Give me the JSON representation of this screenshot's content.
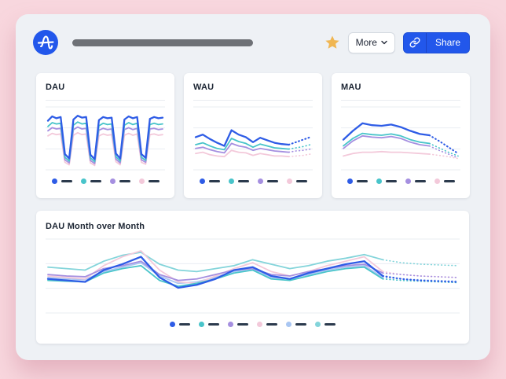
{
  "header": {
    "logo_name": "amplitude-logo",
    "more_label": "More",
    "share_label": "Share"
  },
  "colors": {
    "blue": "#2e5ce6",
    "teal": "#48c4ca",
    "purple": "#a58fe0",
    "pink": "#f3c9da",
    "lightblue": "#a9c6f2",
    "lightcyan": "#83d4da",
    "accent_blue": "#2257eb",
    "star": "#f0b652",
    "legend_dash": "#2b3a4d",
    "page_bg": "#f8d7de",
    "panel_bg": "#eef1f5",
    "gridline": "#e9edf2"
  },
  "chart_data": [
    {
      "type": "line",
      "title": "DAU",
      "ylim": [
        0,
        100
      ],
      "grid": true,
      "legend_position": "bottom",
      "series": [
        {
          "color": "blue",
          "values": [
            78,
            85,
            82,
            84,
            25,
            18,
            80,
            86,
            83,
            84,
            24,
            17,
            79,
            84,
            82,
            83,
            26,
            18,
            80,
            85,
            82,
            84,
            25,
            19,
            81,
            84,
            82,
            83
          ]
        },
        {
          "color": "teal",
          "values": [
            69,
            75,
            73,
            74,
            20,
            14,
            71,
            76,
            73,
            74,
            19,
            13,
            70,
            74,
            72,
            73,
            21,
            14,
            71,
            75,
            72,
            74,
            20,
            15,
            72,
            74,
            72,
            73
          ]
        },
        {
          "color": "purple",
          "values": [
            62,
            67,
            65,
            66,
            16,
            11,
            64,
            68,
            65,
            66,
            15,
            10,
            63,
            66,
            64,
            65,
            17,
            11,
            64,
            67,
            64,
            66,
            16,
            12,
            65,
            66,
            64,
            65
          ]
        },
        {
          "color": "pink",
          "values": [
            54,
            58,
            56,
            57,
            12,
            8,
            55,
            59,
            56,
            57,
            11,
            7,
            54,
            57,
            55,
            56,
            13,
            8,
            55,
            58,
            55,
            57,
            12,
            9,
            56,
            57,
            55,
            56
          ]
        }
      ]
    },
    {
      "type": "line",
      "title": "WAU",
      "ylim": [
        0,
        100
      ],
      "grid": true,
      "legend_position": "bottom",
      "series": [
        {
          "color": "blue",
          "values": [
            52,
            56,
            49,
            43,
            38,
            63,
            56,
            52,
            44,
            51,
            47,
            43,
            41,
            40
          ],
          "forecast": [
            44,
            48,
            52
          ]
        },
        {
          "color": "teal",
          "values": [
            40,
            43,
            38,
            34,
            32,
            50,
            45,
            42,
            36,
            41,
            38,
            35,
            34,
            33
          ],
          "forecast": [
            35,
            37,
            40
          ]
        },
        {
          "color": "purple",
          "values": [
            34,
            36,
            32,
            29,
            27,
            42,
            38,
            36,
            31,
            34,
            32,
            30,
            29,
            28
          ],
          "forecast": [
            30,
            31,
            33
          ]
        },
        {
          "color": "pink",
          "values": [
            26,
            28,
            24,
            22,
            21,
            31,
            28,
            27,
            23,
            26,
            24,
            22,
            22,
            21
          ],
          "forecast": [
            22,
            23,
            25
          ]
        }
      ]
    },
    {
      "type": "line",
      "title": "MAU",
      "ylim": [
        0,
        100
      ],
      "grid": true,
      "legend_position": "bottom",
      "series": [
        {
          "color": "blue",
          "values": [
            48,
            62,
            74,
            71,
            70,
            72,
            68,
            62,
            57,
            55
          ],
          "forecast": [
            46,
            36,
            26
          ]
        },
        {
          "color": "teal",
          "values": [
            38,
            50,
            58,
            56,
            55,
            57,
            54,
            48,
            44,
            42
          ],
          "forecast": [
            35,
            28,
            22
          ]
        },
        {
          "color": "purple",
          "values": [
            34,
            46,
            54,
            52,
            51,
            53,
            50,
            44,
            40,
            38
          ],
          "forecast": [
            31,
            25,
            19
          ]
        },
        {
          "color": "pink",
          "values": [
            22,
            26,
            28,
            28,
            29,
            28,
            28,
            27,
            26,
            25
          ],
          "forecast": [
            23,
            21,
            18
          ]
        }
      ]
    },
    {
      "type": "line",
      "title": "DAU Month over Month",
      "ylim": [
        0,
        100
      ],
      "grid": true,
      "legend_position": "bottom",
      "series": [
        {
          "color": "blue",
          "values": [
            46,
            44,
            42,
            58,
            66,
            76,
            48,
            34,
            38,
            46,
            58,
            62,
            50,
            46,
            54,
            60,
            66,
            70,
            50
          ],
          "forecast": [
            46,
            44,
            43,
            42
          ]
        },
        {
          "color": "teal",
          "values": [
            44,
            43,
            42,
            54,
            60,
            64,
            44,
            36,
            40,
            46,
            54,
            58,
            46,
            44,
            50,
            56,
            60,
            62,
            46
          ],
          "forecast": [
            44,
            43,
            42,
            41
          ]
        },
        {
          "color": "purple",
          "values": [
            52,
            50,
            49,
            60,
            64,
            70,
            52,
            44,
            46,
            52,
            58,
            60,
            52,
            50,
            56,
            60,
            64,
            66,
            54
          ],
          "forecast": [
            52,
            50,
            49,
            48
          ]
        },
        {
          "color": "pink",
          "values": [
            50,
            48,
            46,
            64,
            76,
            84,
            58,
            42,
            40,
            50,
            60,
            68,
            56,
            50,
            56,
            64,
            70,
            76,
            56
          ],
          "forecast": [
            52,
            50,
            49,
            48
          ]
        },
        {
          "color": "lightblue",
          "values": [
            48,
            46,
            45,
            56,
            62,
            68,
            50,
            40,
            42,
            48,
            56,
            60,
            48,
            46,
            52,
            58,
            62,
            64,
            48
          ],
          "forecast": [
            46,
            45,
            44,
            43
          ]
        },
        {
          "color": "lightcyan",
          "values": [
            62,
            60,
            58,
            70,
            78,
            82,
            66,
            58,
            56,
            60,
            64,
            72,
            66,
            60,
            64,
            70,
            74,
            79,
            72
          ],
          "forecast": [
            68,
            66,
            65,
            64
          ]
        }
      ]
    }
  ]
}
